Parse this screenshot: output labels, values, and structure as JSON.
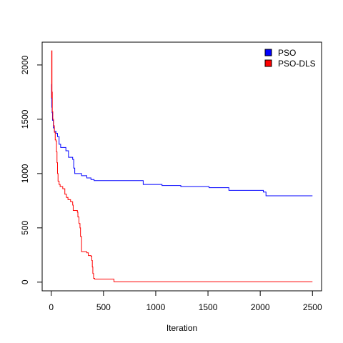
{
  "chart_data": {
    "type": "line",
    "title": "",
    "xlabel": "Iteration",
    "ylabel": "",
    "xlim": [
      -87,
      2587
    ],
    "ylim": [
      -80,
      2210
    ],
    "xticks": [
      0,
      500,
      1000,
      1500,
      2000,
      2500
    ],
    "yticks": [
      0,
      500,
      1000,
      1500,
      2000
    ],
    "grid": false,
    "legend_position": "top-right",
    "series": [
      {
        "name": "PSO",
        "color": "#0000ff",
        "points": [
          [
            1,
            1690
          ],
          [
            3,
            1820
          ],
          [
            5,
            1610
          ],
          [
            8,
            1560
          ],
          [
            12,
            1490
          ],
          [
            20,
            1420
          ],
          [
            30,
            1390
          ],
          [
            45,
            1370
          ],
          [
            60,
            1340
          ],
          [
            75,
            1270
          ],
          [
            90,
            1240
          ],
          [
            140,
            1210
          ],
          [
            165,
            1150
          ],
          [
            205,
            1130
          ],
          [
            215,
            1050
          ],
          [
            225,
            1000
          ],
          [
            290,
            980
          ],
          [
            340,
            960
          ],
          [
            380,
            945
          ],
          [
            410,
            935
          ],
          [
            870,
            935
          ],
          [
            880,
            900
          ],
          [
            1050,
            900
          ],
          [
            1060,
            890
          ],
          [
            1230,
            890
          ],
          [
            1240,
            880
          ],
          [
            1500,
            880
          ],
          [
            1510,
            870
          ],
          [
            1690,
            870
          ],
          [
            1700,
            845
          ],
          [
            2020,
            845
          ],
          [
            2030,
            830
          ],
          [
            2045,
            830
          ],
          [
            2055,
            795
          ],
          [
            2500,
            795
          ]
        ]
      },
      {
        "name": "PSO-DLS",
        "color": "#ff0000",
        "points": [
          [
            1,
            1700
          ],
          [
            4,
            2130
          ],
          [
            7,
            1750
          ],
          [
            10,
            1570
          ],
          [
            15,
            1500
          ],
          [
            22,
            1440
          ],
          [
            30,
            1380
          ],
          [
            38,
            1310
          ],
          [
            45,
            1300
          ],
          [
            50,
            1200
          ],
          [
            55,
            1100
          ],
          [
            60,
            1000
          ],
          [
            65,
            930
          ],
          [
            75,
            900
          ],
          [
            85,
            880
          ],
          [
            110,
            860
          ],
          [
            130,
            810
          ],
          [
            145,
            780
          ],
          [
            160,
            760
          ],
          [
            185,
            740
          ],
          [
            205,
            710
          ],
          [
            210,
            660
          ],
          [
            250,
            645
          ],
          [
            255,
            600
          ],
          [
            265,
            540
          ],
          [
            275,
            500
          ],
          [
            280,
            420
          ],
          [
            290,
            280
          ],
          [
            340,
            270
          ],
          [
            355,
            245
          ],
          [
            380,
            240
          ],
          [
            388,
            200
          ],
          [
            393,
            140
          ],
          [
            398,
            80
          ],
          [
            405,
            35
          ],
          [
            415,
            28
          ],
          [
            590,
            28
          ],
          [
            600,
            3
          ],
          [
            2500,
            3
          ]
        ]
      }
    ]
  }
}
